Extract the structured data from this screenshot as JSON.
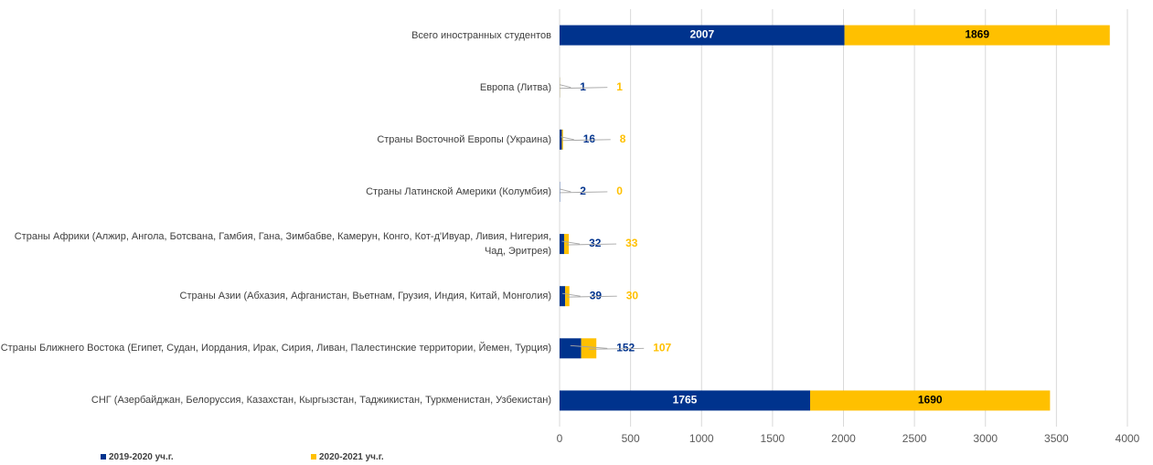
{
  "chart_data": {
    "type": "stacked-barh",
    "categories": [
      "Всего иностранных студентов",
      "Европа (Литва)",
      "Страны Восточной Европы (Украина)",
      "Страны Латинской Америки (Колумбия)",
      "Страны Африки (Алжир, Ангола, Ботсвана, Гамбия, Гана, Зимбабве, Камерун, Конго, Кот-д'Ивуар, Ливия, Нигерия, Чад, Эритрея)",
      "Страны Азии (Абхазия, Афганистан, Вьетнам, Грузия, Индия, Китай, Монголия)",
      "Страны Ближнего Востока (Египет, Судан, Иордания, Ирак, Сирия, Ливан, Палестинские территории, Йемен, Турция)",
      "СНГ (Азербайджан, Белоруссия, Казахстан, Кыргызстан, Таджикистан, Туркменистан, Узбекистан)"
    ],
    "series": [
      {
        "name": "2019-2020 уч.г.",
        "color": "#00338d",
        "values": [
          2007,
          1,
          16,
          2,
          32,
          39,
          152,
          1765
        ]
      },
      {
        "name": "2020-2021 уч.г.",
        "color": "#ffc000",
        "values": [
          1869,
          1,
          8,
          0,
          33,
          30,
          107,
          1690
        ]
      }
    ],
    "xlim": [
      0,
      4000
    ],
    "xticks": [
      0,
      500,
      1000,
      1500,
      2000,
      2500,
      3000,
      3500,
      4000
    ],
    "grid": true
  }
}
